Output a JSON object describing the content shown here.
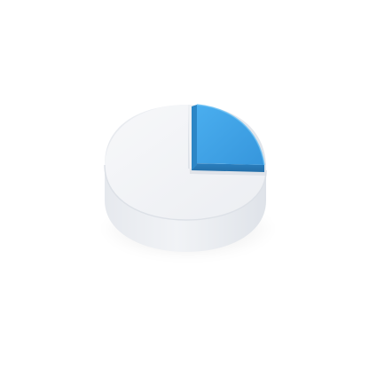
{
  "illustration": {
    "kind": "3d-pie-chart-icon",
    "slices": [
      {
        "name": "large-slice",
        "fraction": 0.75,
        "color": "#f3f4f6"
      },
      {
        "name": "highlighted-slice",
        "fraction": 0.25,
        "color": "#3ea1e6"
      }
    ],
    "colors": {
      "background": "#ffffff",
      "main_top": "#f3f4f6",
      "main_side": "#e4e7ec",
      "accent_top": "#3ea1e6",
      "accent_side": "#2e86c8"
    }
  }
}
